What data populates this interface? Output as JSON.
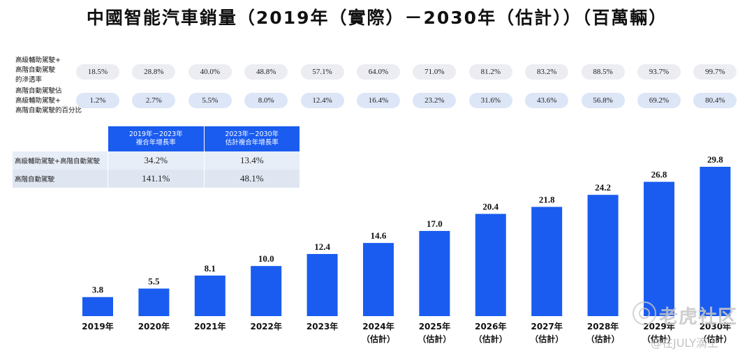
{
  "title": "中國智能汽車銷量（2019年（實際）－2030年（估計））（百萬輛）",
  "penetration": {
    "label_lines": [
      "高級輔助駕駛+",
      "高階自動駕駛",
      "的滲透率"
    ],
    "values": [
      "18.5%",
      "28.8%",
      "40.0%",
      "48.8%",
      "57.1%",
      "64.0%",
      "71.0%",
      "81.2%",
      "83.2%",
      "88.5%",
      "93.7%",
      "99.7%"
    ]
  },
  "high_level_share": {
    "label_lines": [
      "高階自動駕駛佔",
      "高級輔助駕駛+",
      "高階自動駕駛的百分比"
    ],
    "values": [
      "1.2%",
      "2.7%",
      "5.5%",
      "8.0%",
      "12.4%",
      "16.4%",
      "23.2%",
      "31.6%",
      "43.6%",
      "56.8%",
      "69.2%",
      "80.4%"
    ]
  },
  "cagr_table": {
    "headers": [
      "",
      "2019年－2023年\n複合年增長率",
      "2023年－2030年\n估計複合年增長率"
    ],
    "rows": [
      [
        "高級輔助駕駛+高階自動駕駛",
        "34.2%",
        "13.4%"
      ],
      [
        "高階自動駕駛",
        "141.1%",
        "48.1%"
      ]
    ]
  },
  "chart_data": {
    "type": "bar",
    "title": "中國智能汽車銷量（2019年（實際）－2030年（估計））（百萬輛）",
    "categories": [
      "2019年",
      "2020年",
      "2021年",
      "2022年",
      "2023年",
      "2024年",
      "2025年",
      "2026年",
      "2027年",
      "2028年",
      "2029年",
      "2030年"
    ],
    "category_sublabels": [
      "",
      "",
      "",
      "",
      "",
      "（估計）",
      "（估計）",
      "（估計）",
      "（估計）",
      "（估計）",
      "（估計）",
      "（估計）"
    ],
    "values": [
      3.8,
      5.5,
      8.1,
      10.0,
      12.4,
      14.6,
      17.0,
      20.4,
      21.8,
      24.2,
      26.8,
      29.8
    ],
    "value_labels": [
      "3.8",
      "5.5",
      "8.1",
      "10.0",
      "12.4",
      "14.6",
      "17.0",
      "20.4",
      "21.8",
      "24.2",
      "26.8",
      "29.8"
    ],
    "ylim": [
      0,
      29.8
    ],
    "grid": false,
    "bar_color": "#1a5cf0"
  },
  "watermark": {
    "brand": "老虎社区",
    "user": "@在JULY滴上"
  }
}
